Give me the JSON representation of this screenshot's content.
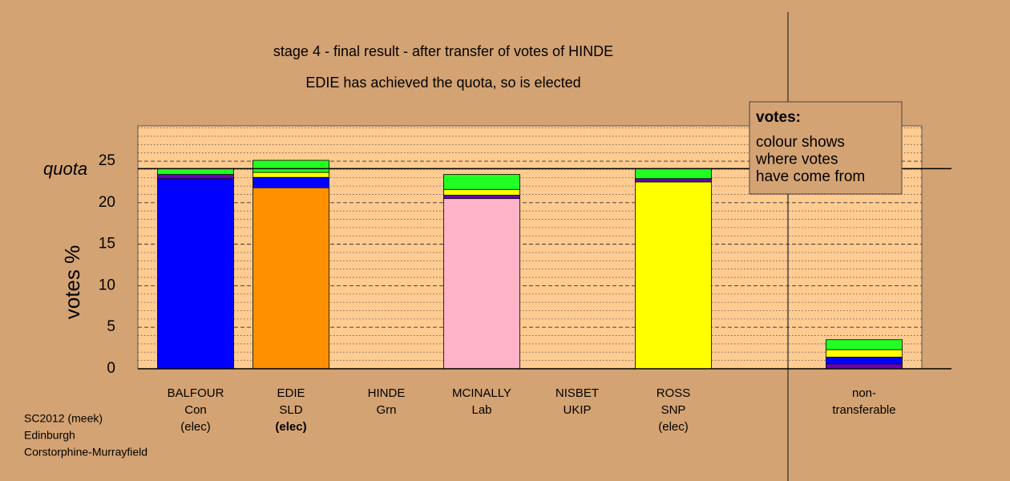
{
  "chart_data": {
    "type": "stacked_bar",
    "title": "stage 4 - final result - after transfer of votes of HINDE",
    "subtitle": "EDIE has achieved the quota, so is elected",
    "ylabel": "votes %",
    "categories": [
      "BALFOUR",
      "EDIE",
      "HINDE",
      "MCINALLY",
      "NISBET",
      "ROSS",
      "non-transferable"
    ],
    "parties": [
      "Con",
      "SLD",
      "Grn",
      "Lab",
      "UKIP",
      "SNP",
      null
    ],
    "status": [
      "(elec)",
      "(elec)",
      null,
      null,
      null,
      "(elec)",
      null
    ],
    "highlight": 1,
    "series": [
      {
        "colors": [
          "#0000ff",
          "#ff9100",
          null,
          "#ffb3c8",
          null,
          "#ffff00",
          null
        ],
        "values": [
          22.9,
          21.8,
          null,
          20.5,
          null,
          22.5,
          null
        ]
      },
      {
        "color": "#6a00b8",
        "values": [
          0.5,
          null,
          null,
          0.4,
          null,
          0.4,
          0.6
        ]
      },
      {
        "color": "#0000ff",
        "values": [
          null,
          1.25,
          null,
          null,
          null,
          null,
          0.8
        ]
      },
      {
        "color": "#ffff00",
        "values": [
          null,
          0.6,
          null,
          0.7,
          null,
          null,
          0.9
        ]
      },
      {
        "color": "#22ff22",
        "values": [
          0.7,
          1.45,
          null,
          1.8,
          null,
          1.2,
          1.2
        ]
      }
    ],
    "ylim": [
      0,
      29.25
    ],
    "yticks": [
      0,
      5,
      10,
      15,
      20,
      25
    ],
    "yminorticks": [
      1,
      2,
      3,
      4,
      6,
      7,
      8,
      9,
      11,
      12,
      13,
      14,
      16,
      17,
      18,
      19,
      21,
      22,
      23,
      24,
      26,
      27,
      28,
      29
    ],
    "grid": true,
    "quota": {
      "label": "quota",
      "value": 24.1
    },
    "note": {
      "title": "votes:",
      "lines": [
        "colour shows",
        "where votes",
        "have come from"
      ]
    },
    "footer": [
      "SC2012 (meek)",
      "Edinburgh",
      "Corstorphine-Murrayfield"
    ]
  }
}
